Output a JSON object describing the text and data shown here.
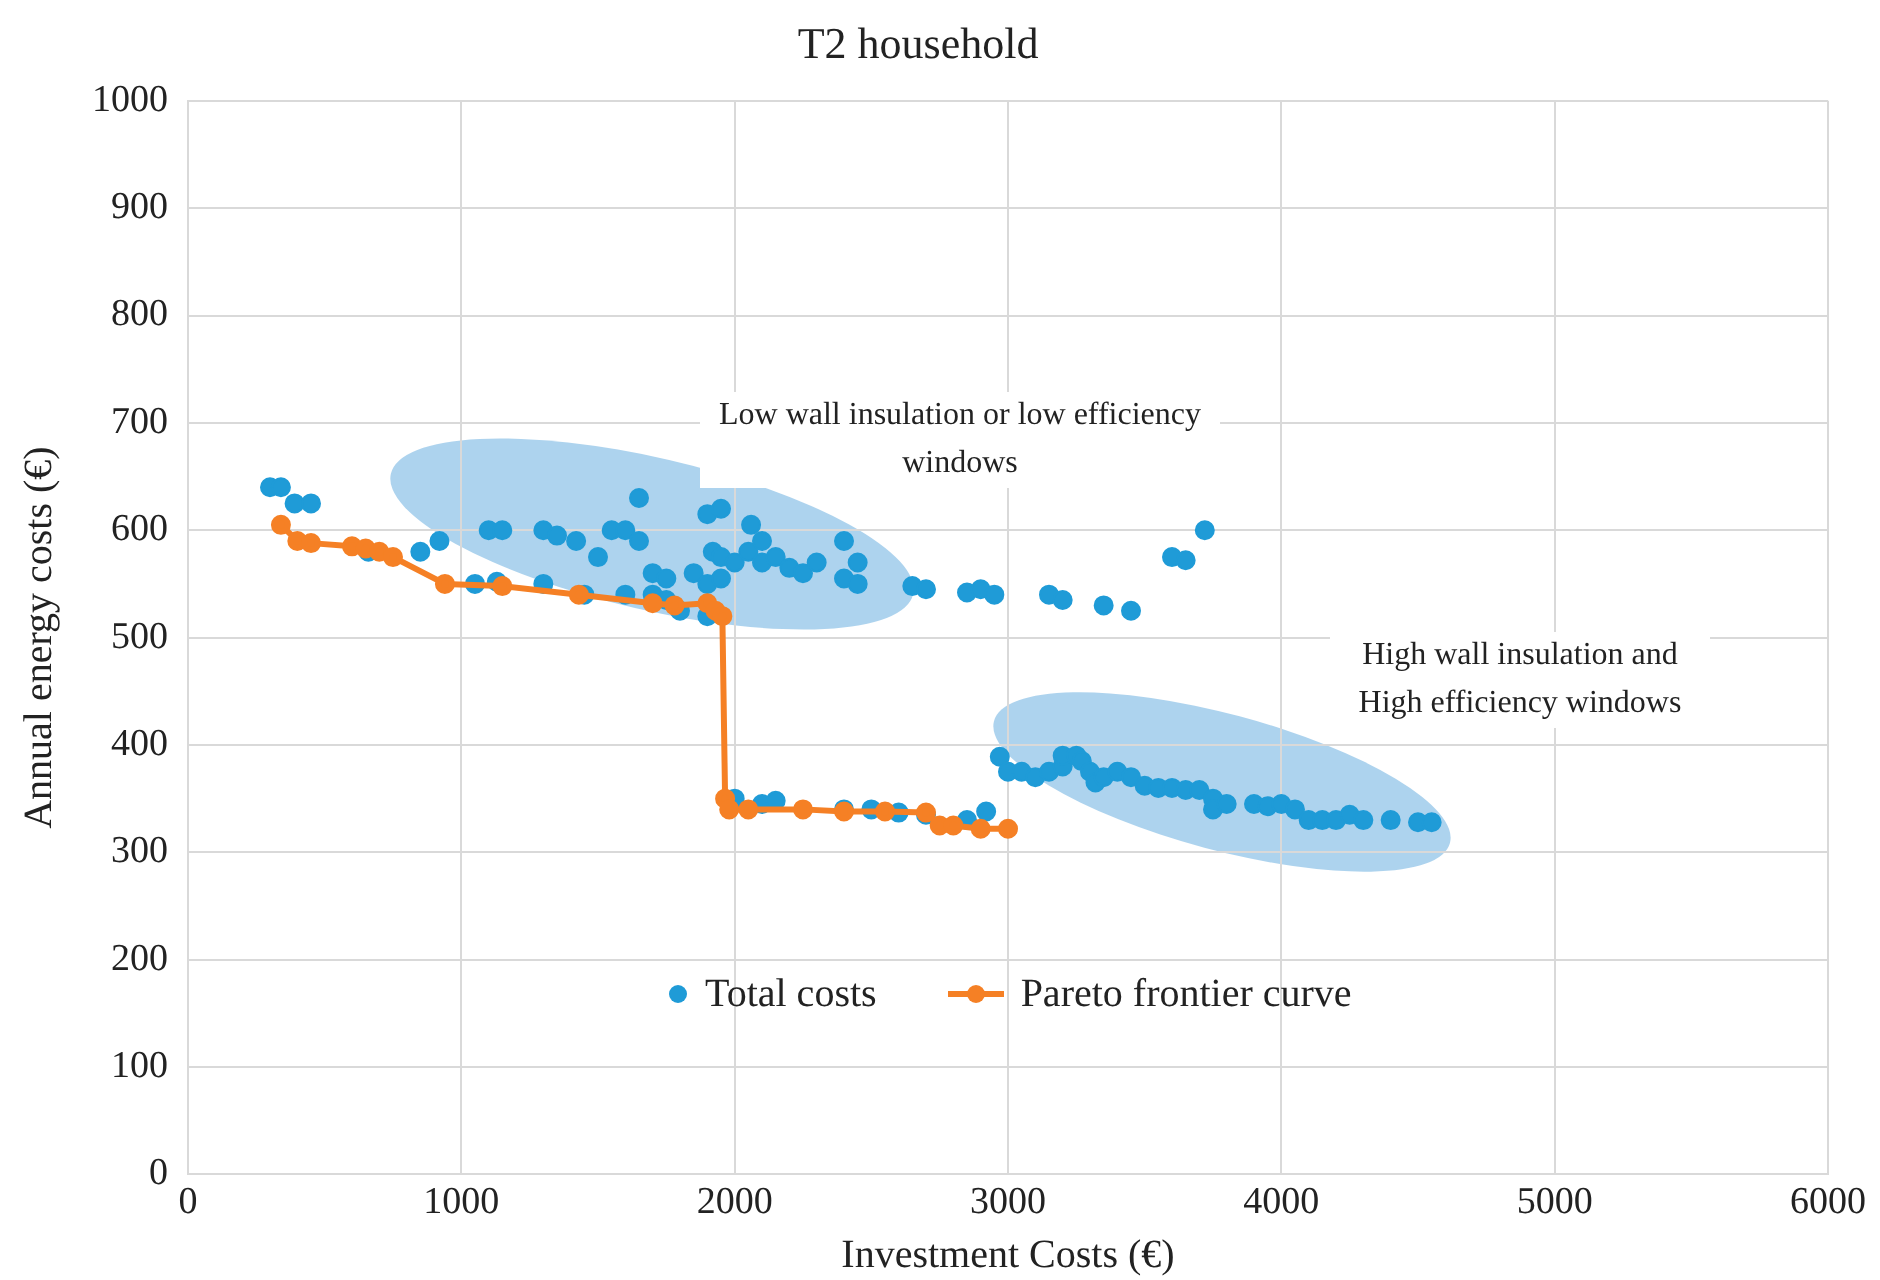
{
  "chart_data": {
    "type": "scatter",
    "title": "T2 household",
    "xlabel": "Investment Costs (€)",
    "ylabel": "Annual energy costs (€)",
    "xlim": [
      0,
      6000
    ],
    "xticks": [
      0,
      1000,
      2000,
      3000,
      4000,
      5000,
      6000
    ],
    "ylim": [
      0,
      1000
    ],
    "yticks": [
      0,
      100,
      200,
      300,
      400,
      500,
      600,
      700,
      800,
      900,
      1000
    ],
    "grid": true,
    "legend": "bottom",
    "marker": "circle",
    "annotations": [
      "Low wall insulation or low efficiency windows",
      "High wall insulation and High efficiency windows"
    ],
    "series": [
      {
        "name": "Total costs",
        "color": "#1f9bd7",
        "x": [
          300,
          340,
          390,
          450,
          600,
          660,
          750,
          850,
          920,
          1100,
          1150,
          1050,
          1130,
          1300,
          1350,
          1300,
          1420,
          1500,
          1550,
          1450,
          1600,
          1650,
          1650,
          1700,
          1750,
          1600,
          1700,
          1750,
          1850,
          1900,
          1950,
          1920,
          1950,
          2000,
          2050,
          1900,
          1950,
          2060,
          2100,
          2100,
          2150,
          2200,
          2250,
          2300,
          2400,
          2450,
          2400,
          2450,
          1800,
          1900,
          2650,
          2700,
          2850,
          2900,
          2950,
          3150,
          3200,
          3350,
          3450,
          3600,
          3650,
          3720,
          2000,
          2100,
          2150,
          2250,
          2400,
          2500,
          2600,
          2700,
          2850,
          2920,
          2970,
          3000,
          3050,
          3100,
          3150,
          3200,
          3200,
          3250,
          3270,
          3300,
          3320,
          3350,
          3400,
          3450,
          3500,
          3550,
          3600,
          3650,
          3700,
          3750,
          3750,
          3800,
          3900,
          3950,
          4000,
          4050,
          4100,
          4150,
          4200,
          4250,
          4300,
          4400,
          4500,
          4550
        ],
        "values": [
          640,
          640,
          625,
          625,
          null,
          580,
          null,
          580,
          590,
          600,
          600,
          550,
          552,
          600,
          595,
          550,
          590,
          575,
          600,
          540,
          600,
          630,
          590,
          560,
          555,
          540,
          540,
          535,
          560,
          615,
          620,
          580,
          575,
          570,
          580,
          550,
          555,
          605,
          590,
          570,
          575,
          565,
          560,
          570,
          590,
          570,
          555,
          550,
          525,
          520,
          548,
          545,
          542,
          545,
          540,
          540,
          535,
          530,
          525,
          575,
          572,
          600,
          350,
          345,
          348,
          null,
          340,
          340,
          337,
          335,
          330,
          338,
          389,
          375,
          375,
          370,
          375,
          380,
          390,
          390,
          385,
          375,
          365,
          370,
          375,
          370,
          362,
          360,
          360,
          358,
          358,
          350,
          340,
          345,
          345,
          343,
          345,
          340,
          330,
          330,
          330,
          335,
          330,
          330,
          328,
          328
        ]
      },
      {
        "name": "Pareto frontier curve",
        "type": "line",
        "color": "#f58025",
        "x": [
          340,
          400,
          450,
          600,
          650,
          700,
          750,
          940,
          1150,
          1430,
          1700,
          1780,
          1900,
          1930,
          1955,
          1965,
          1980,
          2050,
          2250,
          2400,
          2550,
          2700,
          2750,
          2800,
          2900,
          3000
        ],
        "values": [
          605,
          590,
          588,
          585,
          583,
          580,
          575,
          550,
          548,
          540,
          532,
          530,
          532,
          525,
          520,
          350,
          340,
          340,
          340,
          338,
          338,
          337,
          325,
          325,
          322,
          322
        ]
      }
    ]
  }
}
